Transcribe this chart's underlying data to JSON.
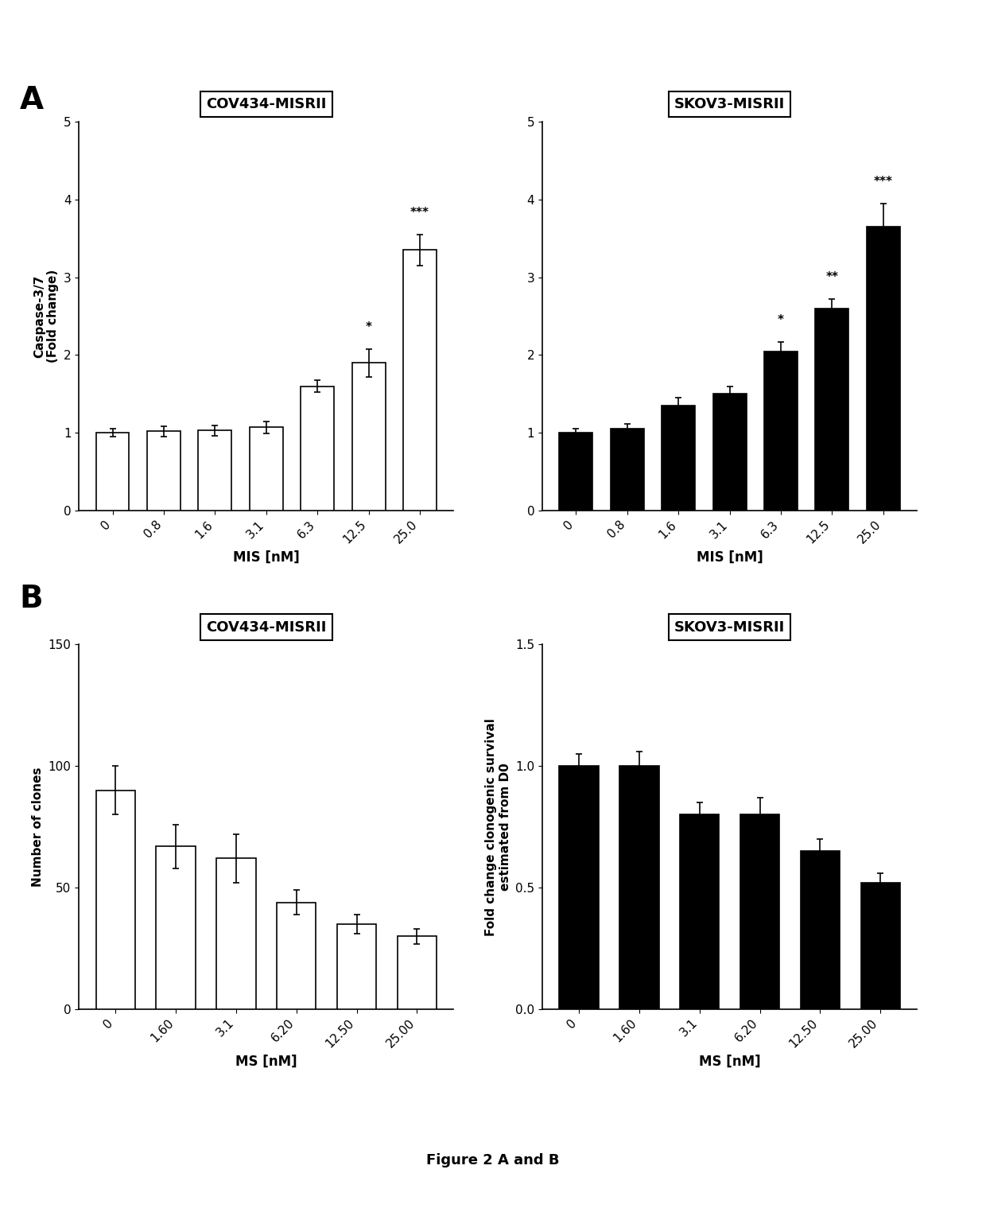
{
  "panel_A_left": {
    "title": "COV434-MISRII",
    "xlabel": "MIS [nM]",
    "ylabel": "Caspase-3/7\n(Fold change)",
    "categories": [
      "0",
      "0.8",
      "1.6",
      "3.1",
      "6.3",
      "12.5",
      "25.0"
    ],
    "values": [
      1.0,
      1.02,
      1.03,
      1.07,
      1.6,
      1.9,
      3.35
    ],
    "errors": [
      0.05,
      0.07,
      0.07,
      0.08,
      0.08,
      0.18,
      0.2
    ],
    "bar_color": "white",
    "edge_color": "black",
    "ylim": [
      0,
      5
    ],
    "yticks": [
      0,
      1,
      2,
      3,
      4,
      5
    ],
    "significance": [
      "",
      "",
      "",
      "",
      "",
      "*",
      "***"
    ]
  },
  "panel_A_right": {
    "title": "SKOV3-MISRII",
    "xlabel": "MIS [nM]",
    "ylabel": "",
    "categories": [
      "0",
      "0.8",
      "1.6",
      "3.1",
      "6.3",
      "12.5",
      "25.0"
    ],
    "values": [
      1.0,
      1.05,
      1.35,
      1.5,
      2.05,
      2.6,
      3.65
    ],
    "errors": [
      0.05,
      0.07,
      0.1,
      0.1,
      0.12,
      0.12,
      0.3
    ],
    "bar_color": "black",
    "edge_color": "black",
    "ylim": [
      0,
      5
    ],
    "yticks": [
      0,
      1,
      2,
      3,
      4,
      5
    ],
    "significance": [
      "",
      "",
      "",
      "",
      "*",
      "**",
      "***"
    ]
  },
  "panel_B_left": {
    "title": "COV434-MISRII",
    "xlabel": "MS [nM]",
    "ylabel": "Number of clones",
    "categories": [
      "0",
      "1.60",
      "3.1",
      "6.20",
      "12.50",
      "25.00"
    ],
    "values": [
      90,
      67,
      62,
      44,
      35,
      30
    ],
    "errors": [
      10,
      9,
      10,
      5,
      4,
      3
    ],
    "bar_color": "white",
    "edge_color": "black",
    "ylim": [
      0,
      150
    ],
    "yticks": [
      0,
      50,
      100,
      150
    ],
    "significance": [
      "",
      "",
      "",
      "",
      "",
      ""
    ]
  },
  "panel_B_right": {
    "title": "SKOV3-MISRII",
    "xlabel": "MS [nM]",
    "ylabel": "Fold change clonogenic survival\nestimated from D0",
    "categories": [
      "0",
      "1.60",
      "3.1",
      "6.20",
      "12.50",
      "25.00"
    ],
    "values": [
      1.0,
      1.0,
      0.8,
      0.8,
      0.65,
      0.52
    ],
    "errors": [
      0.05,
      0.06,
      0.05,
      0.07,
      0.05,
      0.04
    ],
    "bar_color": "black",
    "edge_color": "black",
    "ylim": [
      0.0,
      1.5
    ],
    "yticks": [
      0.0,
      0.5,
      1.0,
      1.5
    ],
    "significance": [
      "",
      "",
      "",
      "",
      "",
      ""
    ]
  },
  "figure_label": "Figure 2 A and B",
  "bg_color": "#f0f0f0",
  "panel_labels": [
    "A",
    "B"
  ]
}
